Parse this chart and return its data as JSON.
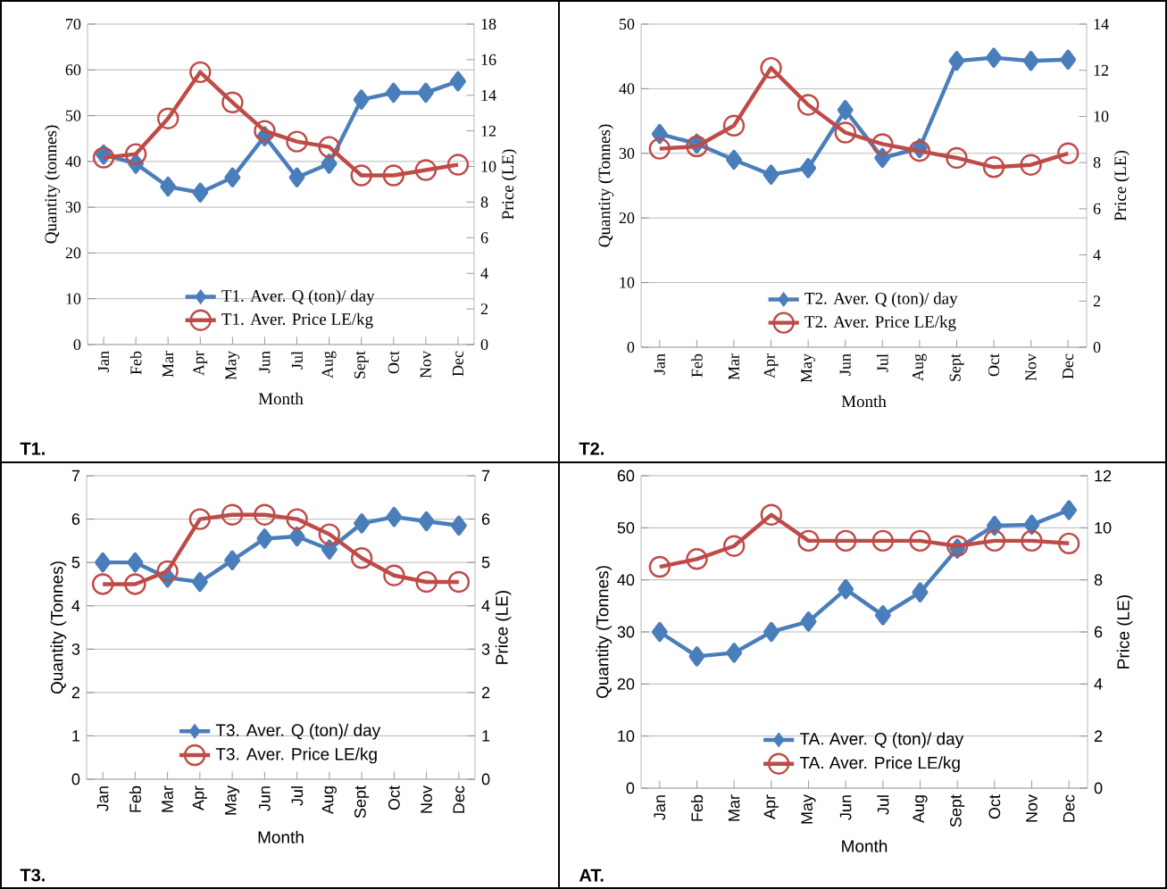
{
  "chart_data": [
    {
      "type": "line",
      "categories": [
        "Jan",
        "Feb",
        "Mar",
        "Apr",
        "May",
        "Jun",
        "Jul",
        "Aug",
        "Sept",
        "Oct",
        "Nov",
        "Dec"
      ],
      "xlabel": "Month",
      "ylabel": "Quantity (tonnes)",
      "y2label": "Price (LE)",
      "ylim": [
        0,
        70
      ],
      "yticks": [
        0,
        10,
        20,
        30,
        40,
        50,
        60,
        70
      ],
      "y2lim": [
        0,
        18
      ],
      "y2ticks": [
        0,
        2,
        4,
        6,
        8,
        10,
        12,
        14,
        16,
        18
      ],
      "grid": "y",
      "legend": "bottom",
      "annotations": [
        "T1."
      ],
      "series": [
        {
          "name": "T1. Aver. Q (ton)/ day",
          "color": "#4a7ebb",
          "marker": "diamond",
          "values": [
            41.5,
            39.5,
            34.5,
            33.2,
            36.5,
            45.5,
            36.5,
            39.5,
            53.5,
            55,
            55,
            57.5
          ]
        },
        {
          "name": "T1. Aver. Price LE/kg",
          "color": "#be4b48",
          "marker": "circle",
          "axis": "y2",
          "values": [
            10.5,
            10.7,
            12.7,
            15.3,
            13.6,
            12.0,
            11.4,
            11.1,
            9.5,
            9.5,
            9.8,
            10.1
          ]
        }
      ]
    },
    {
      "type": "line",
      "categories": [
        "Jan",
        "Feb",
        "Mar",
        "Apr",
        "May",
        "Jun",
        "Jul",
        "Aug",
        "Sept",
        "Oct",
        "Nov",
        "Dec"
      ],
      "xlabel": "Month",
      "ylabel": "Quantity (Tonnes)",
      "y2label": "Price (LE)",
      "ylim": [
        0,
        50
      ],
      "yticks": [
        0,
        10,
        20,
        30,
        40,
        50
      ],
      "y2lim": [
        0,
        14
      ],
      "y2ticks": [
        0,
        2,
        4,
        6,
        8,
        10,
        12,
        14
      ],
      "grid": "y",
      "legend": "bottom",
      "annotations": [
        "T2."
      ],
      "series": [
        {
          "name": "T2. Aver. Q (ton)/ day",
          "color": "#4a7ebb",
          "marker": "diamond",
          "values": [
            33,
            31.5,
            29,
            26.7,
            27.7,
            36.7,
            29.3,
            30.8,
            44.3,
            44.8,
            44.3,
            44.5
          ]
        },
        {
          "name": "T2. Aver. Price LE/kg",
          "color": "#be4b48",
          "marker": "circle",
          "axis": "y2",
          "values": [
            8.6,
            8.7,
            9.6,
            12.1,
            10.5,
            9.3,
            8.8,
            8.5,
            8.2,
            7.8,
            7.9,
            8.4
          ]
        }
      ]
    },
    {
      "type": "line",
      "categories": [
        "Jan",
        "Feb",
        "Mar",
        "Apr",
        "May",
        "Jun",
        "Jul",
        "Aug",
        "Sept",
        "Oct",
        "Nov",
        "Dec"
      ],
      "xlabel": "Month",
      "ylabel": "Quantity (Tonnes)",
      "y2label": "Price (LE)",
      "ylim": [
        0,
        7
      ],
      "yticks": [
        0,
        1,
        2,
        3,
        4,
        5,
        6,
        7
      ],
      "y2lim": [
        0,
        7
      ],
      "y2ticks": [
        0,
        1,
        2,
        3,
        4,
        5,
        6,
        7
      ],
      "grid": "y",
      "legend": "bottom",
      "annotations": [
        "T3."
      ],
      "series": [
        {
          "name": "T3. Aver. Q (ton)/ day",
          "color": "#4a7ebb",
          "marker": "diamond",
          "values": [
            5.0,
            5.0,
            4.65,
            4.55,
            5.05,
            5.55,
            5.6,
            5.3,
            5.9,
            6.05,
            5.95,
            5.85
          ]
        },
        {
          "name": "T3. Aver. Price LE/kg",
          "color": "#be4b48",
          "marker": "circle",
          "axis": "y2",
          "values": [
            4.5,
            4.5,
            4.8,
            6.0,
            6.1,
            6.1,
            6.0,
            5.65,
            5.1,
            4.7,
            4.55,
            4.55
          ]
        }
      ]
    },
    {
      "type": "line",
      "categories": [
        "Jan",
        "Feb",
        "Mar",
        "Apr",
        "May",
        "Jun",
        "Jul",
        "Aug",
        "Sept",
        "Oct",
        "Nov",
        "Dec"
      ],
      "xlabel": "Month",
      "ylabel": "Quantity (Tonnes)",
      "y2label": "Price (LE)",
      "ylim": [
        0,
        60
      ],
      "yticks": [
        0,
        10,
        20,
        30,
        40,
        50,
        60
      ],
      "y2lim": [
        0,
        12
      ],
      "y2ticks": [
        0,
        2,
        4,
        6,
        8,
        10,
        12
      ],
      "grid": "y",
      "legend": "bottom",
      "annotations": [
        "AT."
      ],
      "series": [
        {
          "name": "TA. Aver. Q (ton)/ day",
          "color": "#4a7ebb",
          "marker": "diamond",
          "values": [
            30,
            25.3,
            26,
            30,
            32,
            38.2,
            33.2,
            37.6,
            46,
            50.4,
            50.6,
            53.4
          ]
        },
        {
          "name": "TA. Aver. Price LE/kg",
          "color": "#be4b48",
          "marker": "circle",
          "axis": "y2",
          "values": [
            8.5,
            8.8,
            9.3,
            10.5,
            9.5,
            9.5,
            9.5,
            9.5,
            9.3,
            9.5,
            9.5,
            9.4
          ]
        }
      ]
    }
  ]
}
